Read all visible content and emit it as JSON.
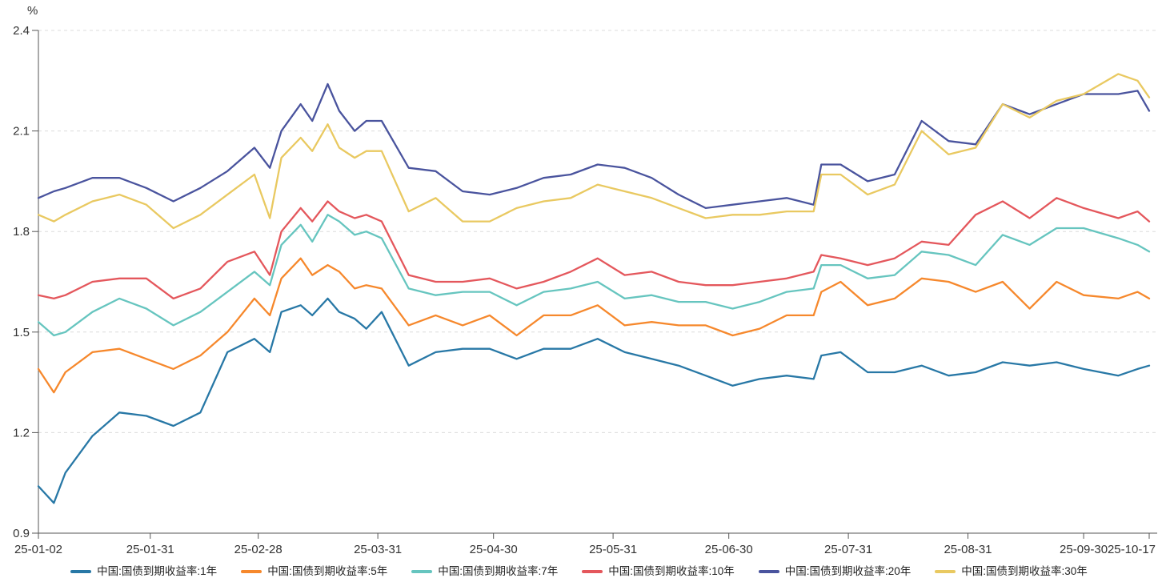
{
  "chart_data": {
    "type": "line",
    "title": "",
    "unit_label": "%",
    "xlabel": "",
    "ylabel": "%",
    "ylim": [
      0.9,
      2.4
    ],
    "y_ticks": [
      0.9,
      1.2,
      1.5,
      1.8,
      2.1,
      2.4
    ],
    "grid": "horizontal-dashed",
    "legend_position": "bottom",
    "axis_color": "#555555",
    "grid_color": "#dcdcdc",
    "label_color": "#333333",
    "x_tick_labels": [
      "25-01-02",
      "25-01-31",
      "25-02-28",
      "25-03-31",
      "25-04-30",
      "25-05-31",
      "25-06-30",
      "25-07-31",
      "25-08-31",
      "25-09-30",
      "25-10-17"
    ],
    "x": [
      "25-01-02",
      "25-01-06",
      "25-01-09",
      "25-01-16",
      "25-01-23",
      "25-01-30",
      "25-02-06",
      "25-02-13",
      "25-02-20",
      "25-02-27",
      "25-03-03",
      "25-03-06",
      "25-03-11",
      "25-03-14",
      "25-03-18",
      "25-03-21",
      "25-03-25",
      "25-03-28",
      "25-04-01",
      "25-04-08",
      "25-04-15",
      "25-04-22",
      "25-04-29",
      "25-05-06",
      "25-05-13",
      "25-05-20",
      "25-05-27",
      "25-06-03",
      "25-06-10",
      "25-06-17",
      "25-06-24",
      "25-07-01",
      "25-07-08",
      "25-07-15",
      "25-07-22",
      "25-07-24",
      "25-07-29",
      "25-08-05",
      "25-08-12",
      "25-08-19",
      "25-08-26",
      "25-09-02",
      "25-09-09",
      "25-09-16",
      "25-09-23",
      "25-09-30",
      "25-10-09",
      "25-10-14",
      "25-10-17"
    ],
    "series": [
      {
        "name": "中国:国债到期收益率:1年",
        "color": "#2878A6",
        "values": [
          1.04,
          0.99,
          1.08,
          1.19,
          1.26,
          1.25,
          1.22,
          1.26,
          1.44,
          1.48,
          1.44,
          1.56,
          1.58,
          1.55,
          1.6,
          1.56,
          1.54,
          1.51,
          1.56,
          1.4,
          1.44,
          1.45,
          1.45,
          1.42,
          1.45,
          1.45,
          1.48,
          1.44,
          1.42,
          1.4,
          1.37,
          1.34,
          1.36,
          1.37,
          1.36,
          1.43,
          1.44,
          1.38,
          1.38,
          1.4,
          1.37,
          1.38,
          1.41,
          1.4,
          1.41,
          1.39,
          1.37,
          1.39,
          1.4
        ]
      },
      {
        "name": "中国:国债到期收益率:5年",
        "color": "#F6882C",
        "values": [
          1.39,
          1.32,
          1.38,
          1.44,
          1.45,
          1.42,
          1.39,
          1.43,
          1.5,
          1.6,
          1.55,
          1.66,
          1.72,
          1.67,
          1.7,
          1.68,
          1.63,
          1.64,
          1.63,
          1.52,
          1.55,
          1.52,
          1.55,
          1.49,
          1.55,
          1.55,
          1.58,
          1.52,
          1.53,
          1.52,
          1.52,
          1.49,
          1.51,
          1.55,
          1.55,
          1.62,
          1.65,
          1.58,
          1.6,
          1.66,
          1.65,
          1.62,
          1.65,
          1.57,
          1.65,
          1.61,
          1.6,
          1.62,
          1.6
        ]
      },
      {
        "name": "中国:国债到期收益率:7年",
        "color": "#66C5BF",
        "values": [
          1.53,
          1.49,
          1.5,
          1.56,
          1.6,
          1.57,
          1.52,
          1.56,
          1.62,
          1.68,
          1.64,
          1.76,
          1.82,
          1.77,
          1.85,
          1.83,
          1.79,
          1.8,
          1.78,
          1.63,
          1.61,
          1.62,
          1.62,
          1.58,
          1.62,
          1.63,
          1.65,
          1.6,
          1.61,
          1.59,
          1.59,
          1.57,
          1.59,
          1.62,
          1.63,
          1.7,
          1.7,
          1.66,
          1.67,
          1.74,
          1.73,
          1.7,
          1.79,
          1.76,
          1.81,
          1.81,
          1.78,
          1.76,
          1.74
        ]
      },
      {
        "name": "中国:国债到期收益率:10年",
        "color": "#E4575C",
        "values": [
          1.61,
          1.6,
          1.61,
          1.65,
          1.66,
          1.66,
          1.6,
          1.63,
          1.71,
          1.74,
          1.67,
          1.8,
          1.87,
          1.83,
          1.89,
          1.86,
          1.84,
          1.85,
          1.83,
          1.67,
          1.65,
          1.65,
          1.66,
          1.63,
          1.65,
          1.68,
          1.72,
          1.67,
          1.68,
          1.65,
          1.64,
          1.64,
          1.65,
          1.66,
          1.68,
          1.73,
          1.72,
          1.7,
          1.72,
          1.77,
          1.76,
          1.85,
          1.89,
          1.84,
          1.9,
          1.87,
          1.84,
          1.86,
          1.83
        ]
      },
      {
        "name": "中国:国债到期收益率:20年",
        "color": "#4A549E",
        "values": [
          1.9,
          1.92,
          1.93,
          1.96,
          1.96,
          1.93,
          1.89,
          1.93,
          1.98,
          2.05,
          1.99,
          2.1,
          2.18,
          2.13,
          2.24,
          2.16,
          2.1,
          2.13,
          2.13,
          1.99,
          1.98,
          1.92,
          1.91,
          1.93,
          1.96,
          1.97,
          2.0,
          1.99,
          1.96,
          1.91,
          1.87,
          1.88,
          1.89,
          1.9,
          1.88,
          2.0,
          2.0,
          1.95,
          1.97,
          2.13,
          2.07,
          2.06,
          2.18,
          2.15,
          2.18,
          2.21,
          2.21,
          2.22,
          2.16
        ]
      },
      {
        "name": "中国:国债到期收益率:30年",
        "color": "#E9C961",
        "values": [
          1.85,
          1.83,
          1.85,
          1.89,
          1.91,
          1.88,
          1.81,
          1.85,
          1.91,
          1.97,
          1.84,
          2.02,
          2.08,
          2.04,
          2.12,
          2.05,
          2.02,
          2.04,
          2.04,
          1.86,
          1.9,
          1.83,
          1.83,
          1.87,
          1.89,
          1.9,
          1.94,
          1.92,
          1.9,
          1.87,
          1.84,
          1.85,
          1.85,
          1.86,
          1.86,
          1.97,
          1.97,
          1.91,
          1.94,
          2.1,
          2.03,
          2.05,
          2.18,
          2.14,
          2.19,
          2.21,
          2.27,
          2.25,
          2.2
        ]
      }
    ]
  }
}
